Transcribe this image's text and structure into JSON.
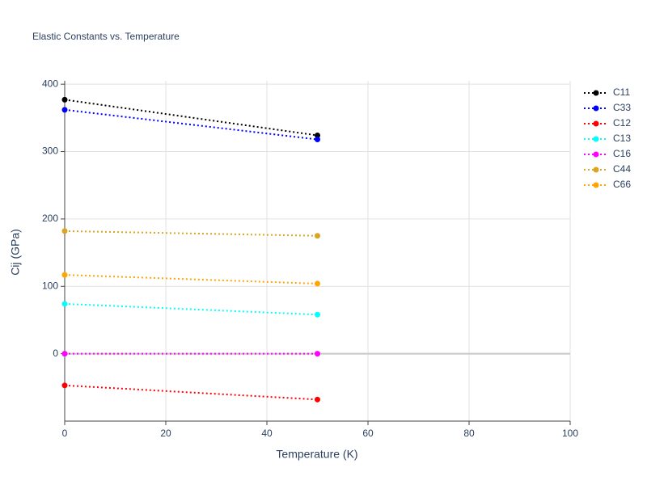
{
  "chart_data": {
    "type": "line",
    "title": "Elastic Constants vs. Temperature",
    "x_label": "Temperature (K)",
    "y_label": "Cij (GPa)",
    "x": [
      0,
      50
    ],
    "series": [
      {
        "name": "C11",
        "color": "#000000",
        "values": [
          377,
          324
        ]
      },
      {
        "name": "C33",
        "color": "#0000ff",
        "values": [
          362,
          318
        ]
      },
      {
        "name": "C12",
        "color": "#ff0000",
        "values": [
          -47,
          -68
        ]
      },
      {
        "name": "C13",
        "color": "#00ffff",
        "values": [
          74,
          58
        ]
      },
      {
        "name": "C16",
        "color": "#ff00ff",
        "values": [
          0,
          0
        ]
      },
      {
        "name": "C44",
        "color": "#daa520",
        "values": [
          182,
          175
        ]
      },
      {
        "name": "C66",
        "color": "#ffa500",
        "values": [
          117,
          104
        ]
      }
    ],
    "xlim": [
      0,
      100
    ],
    "xticks": [
      0,
      20,
      40,
      60,
      80,
      100
    ],
    "ylim": [
      -100,
      405
    ],
    "yticks": [
      0,
      100,
      200,
      300,
      400
    ],
    "grid": true,
    "legend": "right"
  }
}
